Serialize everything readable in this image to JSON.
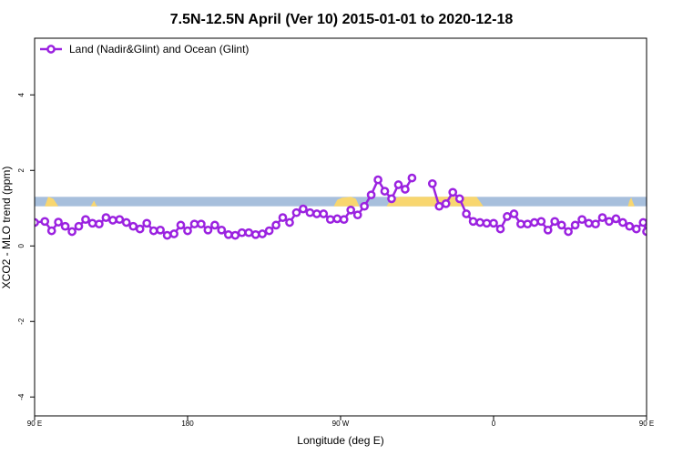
{
  "chart_data": {
    "type": "line",
    "title": "7.5N-12.5N April (Ver 10)   2015-01-01 to 2020-12-18",
    "xlabel": "Longitude (deg E)",
    "ylabel": "XCO2 - MLO trend (ppm)",
    "xlim": [
      90,
      450
    ],
    "ylim": [
      -4.5,
      5.5
    ],
    "x_ticks": [
      {
        "value": 90,
        "label": "90 E"
      },
      {
        "value": 180,
        "label": "180"
      },
      {
        "value": 270,
        "label": "90 W"
      },
      {
        "value": 360,
        "label": "0"
      },
      {
        "value": 450,
        "label": "90 E"
      },
      {
        "value": 540,
        "label": "180"
      }
    ],
    "y_ticks": [
      {
        "value": -4,
        "label": "-4"
      },
      {
        "value": -2,
        "label": "-2"
      },
      {
        "value": 0,
        "label": "0"
      },
      {
        "value": 2,
        "label": "2"
      },
      {
        "value": 4,
        "label": "4"
      }
    ],
    "grid": false,
    "legend_position": "top-left",
    "band": {
      "y_min": 1.05,
      "y_max": 1.3,
      "color": "#a7bfdc"
    },
    "land_color": "#f8d66f",
    "series": [
      {
        "name": "Land (Nadir&Glint) and Ocean (Glint)",
        "color": "#9b22e0",
        "points": [
          [
            90,
            0.62
          ],
          [
            96,
            0.65
          ],
          [
            100,
            0.4
          ],
          [
            104,
            0.63
          ],
          [
            108,
            0.52
          ],
          [
            112,
            0.38
          ],
          [
            116,
            0.52
          ],
          [
            120,
            0.7
          ],
          [
            124,
            0.6
          ],
          [
            128,
            0.58
          ],
          [
            132,
            0.75
          ],
          [
            136,
            0.68
          ],
          [
            140,
            0.7
          ],
          [
            144,
            0.62
          ],
          [
            148,
            0.52
          ],
          [
            152,
            0.45
          ],
          [
            156,
            0.6
          ],
          [
            160,
            0.4
          ],
          [
            164,
            0.42
          ],
          [
            168,
            0.28
          ],
          [
            172,
            0.32
          ],
          [
            176,
            0.55
          ],
          [
            180,
            0.4
          ],
          [
            184,
            0.58
          ],
          [
            188,
            0.58
          ],
          [
            192,
            0.42
          ],
          [
            196,
            0.55
          ],
          [
            200,
            0.42
          ],
          [
            204,
            0.3
          ],
          [
            208,
            0.28
          ],
          [
            212,
            0.35
          ],
          [
            216,
            0.35
          ],
          [
            220,
            0.3
          ],
          [
            224,
            0.32
          ],
          [
            228,
            0.4
          ],
          [
            232,
            0.55
          ],
          [
            236,
            0.75
          ],
          [
            240,
            0.62
          ],
          [
            244,
            0.88
          ],
          [
            248,
            0.98
          ],
          [
            252,
            0.88
          ],
          [
            256,
            0.85
          ],
          [
            260,
            0.85
          ],
          [
            264,
            0.7
          ],
          [
            268,
            0.72
          ],
          [
            272,
            0.7
          ],
          [
            276,
            0.95
          ],
          [
            280,
            0.82
          ],
          [
            284,
            1.05
          ],
          [
            288,
            1.35
          ],
          [
            292,
            1.75
          ],
          [
            296,
            1.45
          ],
          [
            300,
            1.25
          ],
          [
            304,
            1.62
          ],
          [
            308,
            1.5
          ],
          [
            312,
            1.8
          ],
          [
            null,
            null
          ],
          [
            324,
            1.65
          ],
          [
            328,
            1.05
          ],
          [
            332,
            1.12
          ],
          [
            336,
            1.42
          ],
          [
            340,
            1.25
          ],
          [
            344,
            0.85
          ],
          [
            348,
            0.65
          ],
          [
            352,
            0.62
          ],
          [
            356,
            0.6
          ],
          [
            360,
            0.6
          ],
          [
            364,
            0.45
          ],
          [
            368,
            0.78
          ],
          [
            372,
            0.85
          ],
          [
            376,
            0.58
          ],
          [
            380,
            0.58
          ],
          [
            384,
            0.62
          ],
          [
            388,
            0.65
          ],
          [
            392,
            0.42
          ],
          [
            396,
            0.65
          ],
          [
            400,
            0.55
          ],
          [
            404,
            0.38
          ],
          [
            408,
            0.55
          ],
          [
            412,
            0.7
          ],
          [
            416,
            0.6
          ],
          [
            420,
            0.58
          ],
          [
            424,
            0.75
          ],
          [
            428,
            0.65
          ],
          [
            432,
            0.72
          ],
          [
            436,
            0.62
          ],
          [
            440,
            0.52
          ],
          [
            444,
            0.45
          ],
          [
            448,
            0.62
          ],
          [
            450,
            0.38
          ]
        ]
      }
    ],
    "land_segments": [
      [
        [
          96,
          1.05
        ],
        [
          98,
          1.3
        ],
        [
          101,
          1.25
        ],
        [
          104,
          1.05
        ]
      ],
      [
        [
          123,
          1.05
        ],
        [
          125,
          1.2
        ],
        [
          126,
          1.1
        ],
        [
          127,
          1.05
        ]
      ],
      [
        [
          266,
          1.05
        ],
        [
          268,
          1.22
        ],
        [
          271,
          1.28
        ],
        [
          276,
          1.3
        ],
        [
          279,
          1.25
        ],
        [
          281,
          1.05
        ]
      ],
      [
        [
          297,
          1.05
        ],
        [
          300,
          1.25
        ],
        [
          305,
          1.3
        ],
        [
          350,
          1.3
        ],
        [
          354,
          1.05
        ]
      ],
      [
        [
          439,
          1.05
        ],
        [
          440,
          1.2
        ],
        [
          441,
          1.28
        ],
        [
          442,
          1.15
        ],
        [
          443,
          1.05
        ]
      ],
      [
        [
          465,
          1.05
        ],
        [
          466,
          1.18
        ],
        [
          468,
          1.05
        ]
      ],
      [
        [
          495,
          1.05
        ],
        [
          497,
          1.25
        ],
        [
          499,
          1.05
        ]
      ]
    ]
  }
}
